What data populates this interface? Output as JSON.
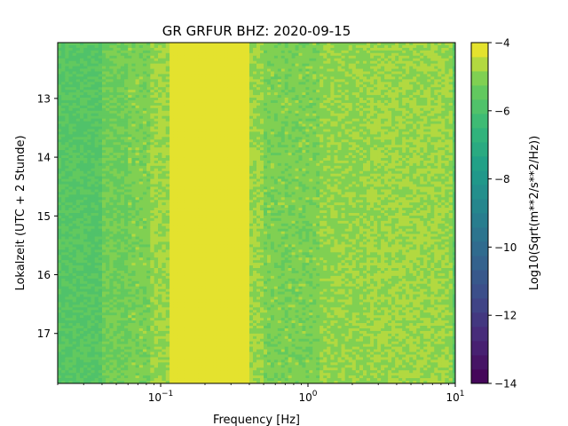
{
  "chart_data": {
    "type": "heatmap",
    "title": "GR GRFUR  BHZ: 2020-09-15",
    "xlabel": "Frequency [Hz]",
    "ylabel": "Lokalzeit (UTC + 2 Stunde)",
    "x_scale": "log",
    "xlim": [
      0.02,
      10
    ],
    "x_ticks": [
      {
        "value": 0.1,
        "label": "10",
        "exp": "−1"
      },
      {
        "value": 1,
        "label": "10",
        "exp": "0"
      },
      {
        "value": 10,
        "label": "10",
        "exp": "1"
      }
    ],
    "ylim": [
      12.05,
      17.85
    ],
    "y_inverted": true,
    "y_ticks": [
      13,
      14,
      15,
      16,
      17
    ],
    "colorbar": {
      "label": "Log10(Sqrt(m**2/s**2/Hz))",
      "range": [
        -14,
        -4
      ],
      "ticks": [
        -4,
        -6,
        -8,
        -10,
        -12,
        -14
      ],
      "tick_labels": [
        "−4",
        "−6",
        "−8",
        "−10",
        "−12",
        "−14"
      ],
      "colormap": "viridis",
      "levels": 24
    },
    "frequency_bands": [
      {
        "f_start": 0.02,
        "f_end": 0.04,
        "value": -5.7
      },
      {
        "f_start": 0.04,
        "f_end": 0.06,
        "value": -5.3
      },
      {
        "f_start": 0.06,
        "f_end": 0.085,
        "value": -5.1
      },
      {
        "f_start": 0.085,
        "f_end": 0.115,
        "value": -4.8
      },
      {
        "f_start": 0.115,
        "f_end": 0.4,
        "value": -4.1
      },
      {
        "f_start": 0.4,
        "f_end": 0.5,
        "value": -4.8
      },
      {
        "f_start": 0.5,
        "f_end": 1.2,
        "value": -5.1
      },
      {
        "f_start": 1.2,
        "f_end": 2.5,
        "value": -4.9
      },
      {
        "f_start": 2.5,
        "f_end": 8.5,
        "value": -4.8
      },
      {
        "f_start": 8.5,
        "f_end": 9.6,
        "value": -4.9
      },
      {
        "f_start": 9.6,
        "f_end": 10,
        "value": -5.6
      }
    ]
  }
}
